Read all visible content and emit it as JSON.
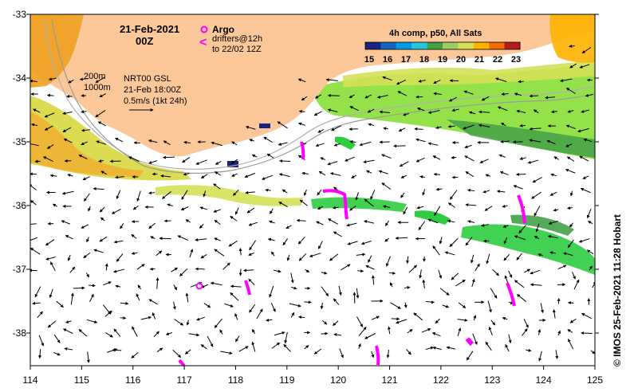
{
  "title": {
    "date": "21-Feb-2021",
    "time": "00Z"
  },
  "legend": {
    "argo_label": "Argo",
    "drifters_line1": "drifters@12h",
    "drifters_line2": "to 22/02 12Z",
    "argo_color": "#ff00ff",
    "drifter_color": "#ff00ff"
  },
  "isobaths": {
    "label_200": "200m",
    "label_1000": "1000m"
  },
  "altimetry": {
    "product": "NRT00 GSL",
    "valid": "21-Feb 18:00Z",
    "scale": "0.5m/s (1kt 24h)"
  },
  "colorbar": {
    "title": "4h comp, p50, All Sats",
    "ticks": [
      "15",
      "16",
      "17",
      "18",
      "19",
      "20",
      "21",
      "22",
      "23"
    ],
    "colors": [
      "#1a237e",
      "#1565c0",
      "#039be5",
      "#26c6da",
      "#43a047",
      "#9ccc65",
      "#d4e157",
      "#ffb300",
      "#ef6c00",
      "#b71c1c"
    ]
  },
  "axes": {
    "x_ticks": [
      "114",
      "115",
      "116",
      "117",
      "118",
      "119",
      "120",
      "121",
      "122",
      "123",
      "124",
      "125"
    ],
    "y_ticks": [
      "-33",
      "-34",
      "-35",
      "-36",
      "-37",
      "-38"
    ]
  },
  "credit": "© IMOS 25-Feb-2021 11:28 Hobart",
  "colors": {
    "land": "#fcc89a",
    "coast_sst_warm": "#f0a020",
    "shelf_green": "#8ee040",
    "offshore_green": "#2ecc40"
  }
}
